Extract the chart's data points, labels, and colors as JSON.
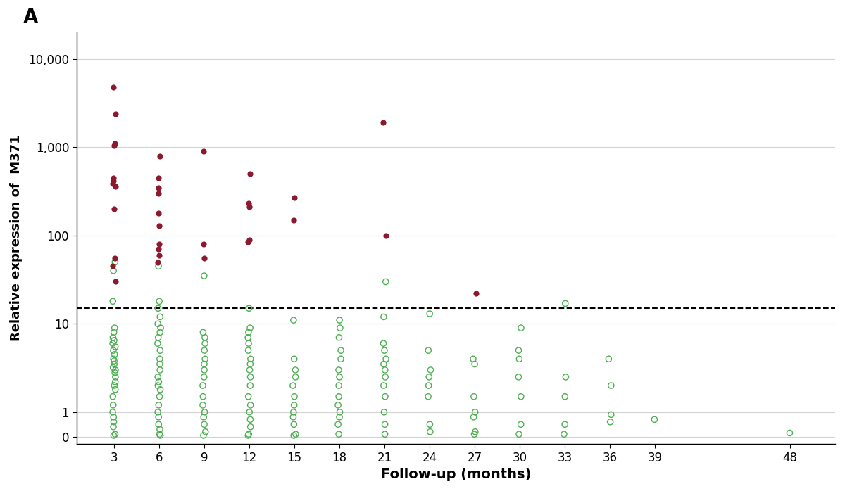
{
  "title_label": "A",
  "xlabel": "Follow-up (months)",
  "ylabel": "Relative expression of  M371",
  "dashed_line_y": 15,
  "xticks": [
    3,
    6,
    9,
    12,
    15,
    18,
    21,
    24,
    27,
    30,
    33,
    36,
    39,
    48
  ],
  "ytick_vals": [
    0,
    1,
    10,
    100,
    1000,
    10000
  ],
  "ytick_labels": [
    "0",
    "1",
    "10",
    "100",
    "1,000",
    "10,000"
  ],
  "red_color": "#8B1A2E",
  "green_color": "#4CAF50",
  "red_points": {
    "3": [
      4800,
      2400,
      1100,
      1050,
      450,
      420,
      390,
      360,
      200,
      55,
      45,
      30
    ],
    "6": [
      800,
      450,
      350,
      300,
      180,
      130,
      80,
      70,
      60,
      50
    ],
    "9": [
      900,
      80,
      55
    ],
    "12": [
      500,
      230,
      210,
      90,
      85
    ],
    "15": [
      270,
      150
    ],
    "18": [],
    "21": [
      1900,
      100
    ],
    "24": [],
    "27": [
      22
    ],
    "30": [],
    "33": [],
    "36": [],
    "39": [],
    "48": []
  },
  "green_points": {
    "3": [
      50,
      40,
      18,
      9,
      8,
      7,
      6.5,
      6,
      5.5,
      5,
      4.5,
      4,
      3.8,
      3.5,
      3.2,
      3.0,
      2.8,
      2.5,
      2.2,
      2.0,
      1.8,
      1.5,
      1.2,
      1.0,
      0.8,
      0.6,
      0.4,
      0.1,
      0.05
    ],
    "6": [
      45,
      18,
      15,
      12,
      10,
      9,
      8,
      7,
      6,
      5,
      4,
      3.5,
      3.0,
      2.5,
      2.2,
      2.0,
      1.8,
      1.5,
      1.2,
      1.0,
      0.8,
      0.5,
      0.3,
      0.1,
      0.05
    ],
    "9": [
      35,
      8,
      7,
      6,
      5,
      4,
      3.5,
      3.0,
      2.5,
      2.0,
      1.5,
      1.2,
      1.0,
      0.8,
      0.5,
      0.2,
      0.05
    ],
    "12": [
      15,
      9,
      8,
      7,
      6,
      5,
      4,
      3.5,
      3.0,
      2.5,
      2.0,
      1.5,
      1.2,
      1.0,
      0.7,
      0.4,
      0.1,
      0.05
    ],
    "15": [
      11,
      4,
      3,
      2.5,
      2.0,
      1.5,
      1.2,
      1.0,
      0.8,
      0.5,
      0.1,
      0.05
    ],
    "18": [
      11,
      9,
      7,
      5,
      4,
      3,
      2.5,
      2.0,
      1.5,
      1.2,
      1.0,
      0.8,
      0.5,
      0.1
    ],
    "21": [
      30,
      12,
      6,
      5,
      4,
      3.5,
      3.0,
      2.5,
      2.0,
      1.5,
      1.0,
      0.5,
      0.1
    ],
    "24": [
      13,
      5,
      3,
      2.5,
      2.0,
      1.5,
      0.5,
      0.2
    ],
    "27": [
      4,
      3.5,
      1.5,
      1.0,
      0.8,
      0.2,
      0.1
    ],
    "30": [
      9,
      5,
      4,
      2.5,
      1.5,
      0.5,
      0.1
    ],
    "33": [
      17,
      2.5,
      1.5,
      0.5,
      0.1
    ],
    "36": [
      4,
      2,
      0.9,
      0.6
    ],
    "39": [
      0.7
    ],
    "48": [
      0.15
    ]
  }
}
